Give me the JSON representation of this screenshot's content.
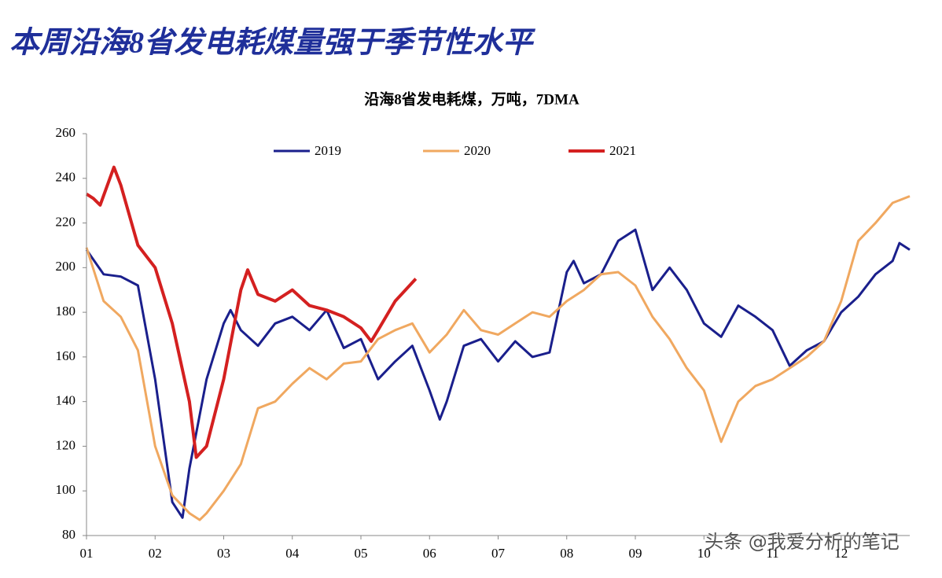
{
  "page_title": "本周沿海8省发电耗煤量强于季节性水平",
  "watermark": "头条 @我爱分析的笔记",
  "chart_data": {
    "type": "line",
    "title": "沿海8省发电耗煤，万吨，7DMA",
    "xlim": [
      1,
      13
    ],
    "xticks": [
      {
        "value": 1,
        "label": "01"
      },
      {
        "value": 2,
        "label": "02"
      },
      {
        "value": 3,
        "label": "03"
      },
      {
        "value": 4,
        "label": "04"
      },
      {
        "value": 5,
        "label": "05"
      },
      {
        "value": 6,
        "label": "06"
      },
      {
        "value": 7,
        "label": "07"
      },
      {
        "value": 8,
        "label": "08"
      },
      {
        "value": 9,
        "label": "09"
      },
      {
        "value": 10,
        "label": "10"
      },
      {
        "value": 11,
        "label": "11"
      },
      {
        "value": 12,
        "label": "12"
      }
    ],
    "ylim": [
      80,
      260
    ],
    "yticks": [
      80,
      100,
      120,
      140,
      160,
      180,
      200,
      220,
      240,
      260
    ],
    "grid": false,
    "legend": "top",
    "series": [
      {
        "name": "2019",
        "color": "#1a1f8c",
        "x": [
          1,
          1.25,
          1.5,
          1.75,
          2,
          2.25,
          2.4,
          2.5,
          2.75,
          3,
          3.1,
          3.25,
          3.5,
          3.75,
          4,
          4.25,
          4.5,
          4.75,
          5,
          5.25,
          5.5,
          5.75,
          6,
          6.15,
          6.25,
          6.5,
          6.75,
          7,
          7.25,
          7.5,
          7.75,
          8,
          8.1,
          8.25,
          8.5,
          8.75,
          9,
          9.25,
          9.5,
          9.75,
          10,
          10.25,
          10.5,
          10.75,
          11,
          11.25,
          11.5,
          11.75,
          12,
          12.25,
          12.5,
          12.75,
          12.85,
          13
        ],
        "values": [
          208,
          197,
          196,
          192,
          150,
          95,
          88,
          110,
          150,
          175,
          181,
          172,
          165,
          175,
          178,
          172,
          181,
          164,
          168,
          150,
          158,
          165,
          145,
          132,
          140,
          165,
          168,
          158,
          167,
          160,
          162,
          198,
          203,
          193,
          197,
          212,
          217,
          190,
          200,
          190,
          175,
          169,
          183,
          178,
          172,
          156,
          163,
          167,
          180,
          187,
          197,
          203,
          211,
          208
        ]
      },
      {
        "name": "2020",
        "color": "#f0a860",
        "x": [
          1,
          1.25,
          1.5,
          1.75,
          2,
          2.25,
          2.5,
          2.65,
          2.75,
          3,
          3.25,
          3.5,
          3.75,
          4,
          4.25,
          4.5,
          4.75,
          5,
          5.25,
          5.5,
          5.75,
          6,
          6.25,
          6.5,
          6.75,
          7,
          7.25,
          7.5,
          7.75,
          8,
          8.25,
          8.5,
          8.75,
          9,
          9.25,
          9.5,
          9.75,
          10,
          10.25,
          10.5,
          10.75,
          11,
          11.25,
          11.5,
          11.75,
          12,
          12.25,
          12.5,
          12.75,
          13
        ],
        "values": [
          209,
          185,
          178,
          163,
          120,
          98,
          90,
          87,
          90,
          100,
          112,
          137,
          140,
          148,
          155,
          150,
          157,
          158,
          168,
          172,
          175,
          162,
          170,
          181,
          172,
          170,
          175,
          180,
          178,
          185,
          190,
          197,
          198,
          192,
          178,
          168,
          155,
          145,
          122,
          140,
          147,
          150,
          155,
          160,
          167,
          185,
          212,
          220,
          229,
          232
        ]
      },
      {
        "name": "2021",
        "color": "#d42020",
        "x": [
          1,
          1.1,
          1.2,
          1.4,
          1.5,
          1.75,
          2,
          2.25,
          2.5,
          2.6,
          2.75,
          3,
          3.25,
          3.35,
          3.5,
          3.75,
          4,
          4.25,
          4.5,
          4.75,
          5,
          5.15,
          5.25,
          5.5,
          5.8
        ],
        "values": [
          233,
          231,
          228,
          245,
          237,
          210,
          200,
          175,
          140,
          115,
          120,
          150,
          190,
          199,
          188,
          185,
          190,
          183,
          181,
          178,
          173,
          167,
          172,
          185,
          195
        ]
      }
    ]
  }
}
